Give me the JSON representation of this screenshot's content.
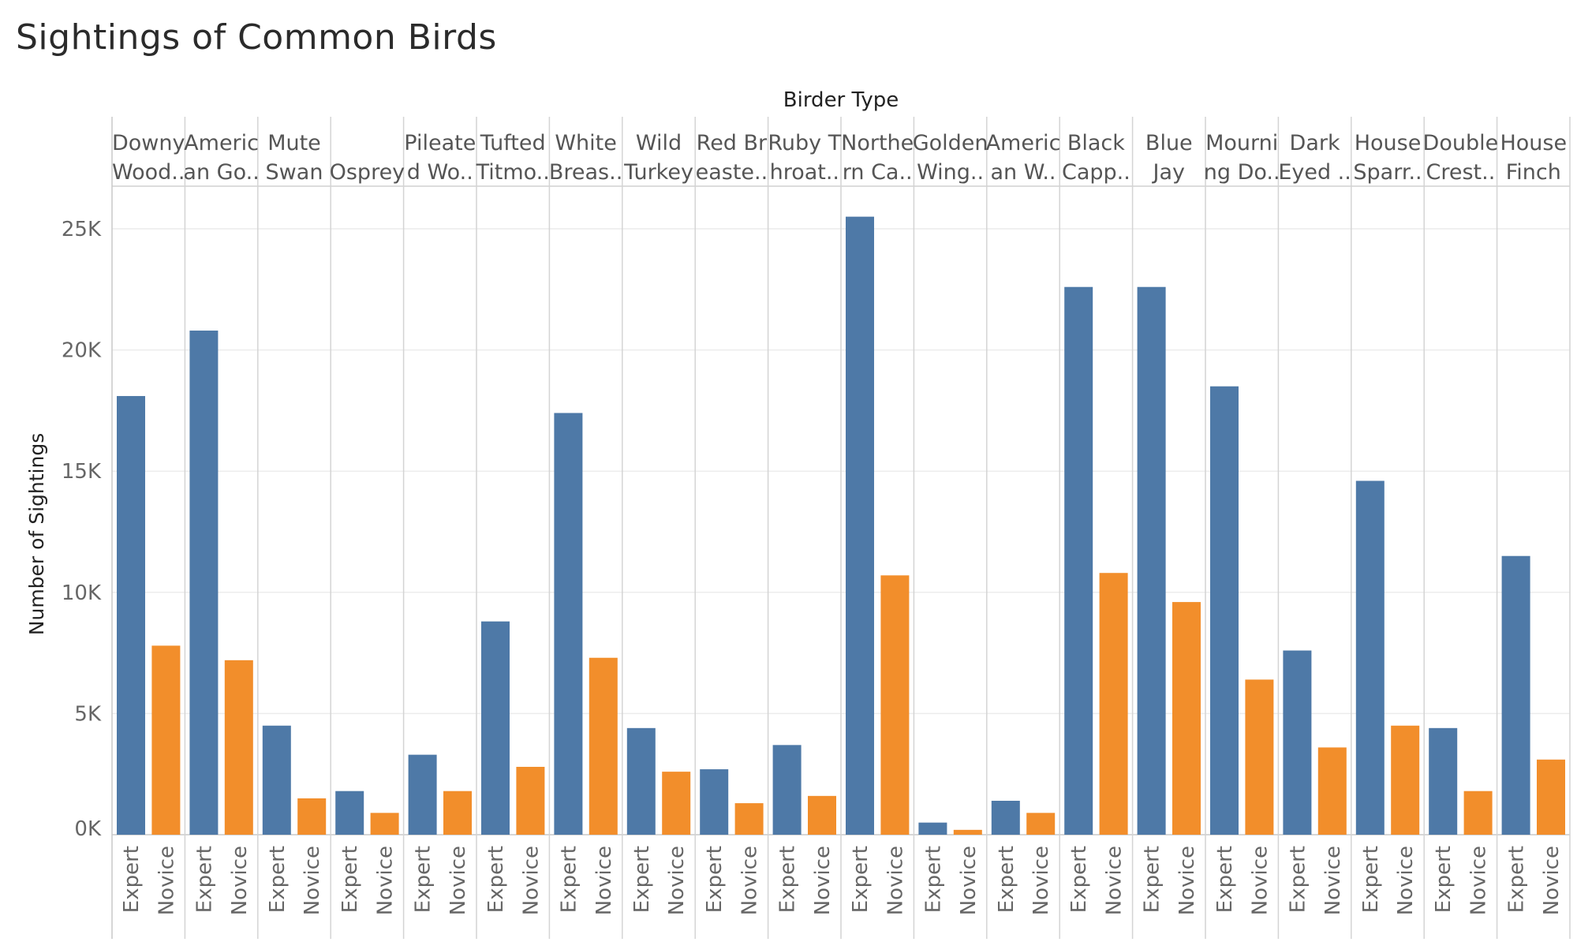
{
  "title": "Sightings of Common Birds",
  "chart_data": {
    "type": "bar",
    "title": "Sightings of Common Birds",
    "column_header": "Birder Type",
    "ylabel": "Number of Sightings",
    "ylim": [
      0,
      27000
    ],
    "yticks": [
      0,
      5000,
      10000,
      15000,
      20000,
      25000
    ],
    "ytick_labels": [
      "0K",
      "5K",
      "10K",
      "15K",
      "20K",
      "25K"
    ],
    "grid": true,
    "subcategories": [
      "Expert",
      "Novice"
    ],
    "colors": {
      "Expert": "#4e79a7",
      "Novice": "#f28e2b"
    },
    "panels": [
      {
        "label": [
          "Downy",
          "Wood.."
        ],
        "expert": 18100,
        "novice": 7800
      },
      {
        "label": [
          "Americ",
          "an Go.."
        ],
        "expert": 20800,
        "novice": 7200
      },
      {
        "label": [
          "Mute",
          "Swan"
        ],
        "expert": 4500,
        "novice": 1500
      },
      {
        "label": [
          "",
          "Osprey"
        ],
        "expert": 1800,
        "novice": 900
      },
      {
        "label": [
          "Pileate",
          "d Wo.."
        ],
        "expert": 3300,
        "novice": 1800
      },
      {
        "label": [
          "Tufted",
          "Titmo.."
        ],
        "expert": 8800,
        "novice": 2800
      },
      {
        "label": [
          "White",
          "Breas.."
        ],
        "expert": 17400,
        "novice": 7300
      },
      {
        "label": [
          "Wild",
          "Turkey"
        ],
        "expert": 4400,
        "novice": 2600
      },
      {
        "label": [
          "Red Br",
          "easte.."
        ],
        "expert": 2700,
        "novice": 1300
      },
      {
        "label": [
          "Ruby T",
          "hroat.."
        ],
        "expert": 3700,
        "novice": 1600
      },
      {
        "label": [
          "Northe",
          "rn Ca.."
        ],
        "expert": 25500,
        "novice": 10700
      },
      {
        "label": [
          "Golden",
          "Wing.."
        ],
        "expert": 500,
        "novice": 200
      },
      {
        "label": [
          "Americ",
          "an W.."
        ],
        "expert": 1400,
        "novice": 900
      },
      {
        "label": [
          "Black",
          "Capp.."
        ],
        "expert": 22600,
        "novice": 10800
      },
      {
        "label": [
          "Blue",
          "Jay"
        ],
        "expert": 22600,
        "novice": 9600
      },
      {
        "label": [
          "Mourni",
          "ng Do.."
        ],
        "expert": 18500,
        "novice": 6400
      },
      {
        "label": [
          "Dark",
          "Eyed .."
        ],
        "expert": 7600,
        "novice": 3600
      },
      {
        "label": [
          "House",
          "Sparr.."
        ],
        "expert": 14600,
        "novice": 4500
      },
      {
        "label": [
          "Double",
          "Crest.."
        ],
        "expert": 4400,
        "novice": 1800
      },
      {
        "label": [
          "House",
          "Finch"
        ],
        "expert": 11500,
        "novice": 3100
      }
    ]
  }
}
